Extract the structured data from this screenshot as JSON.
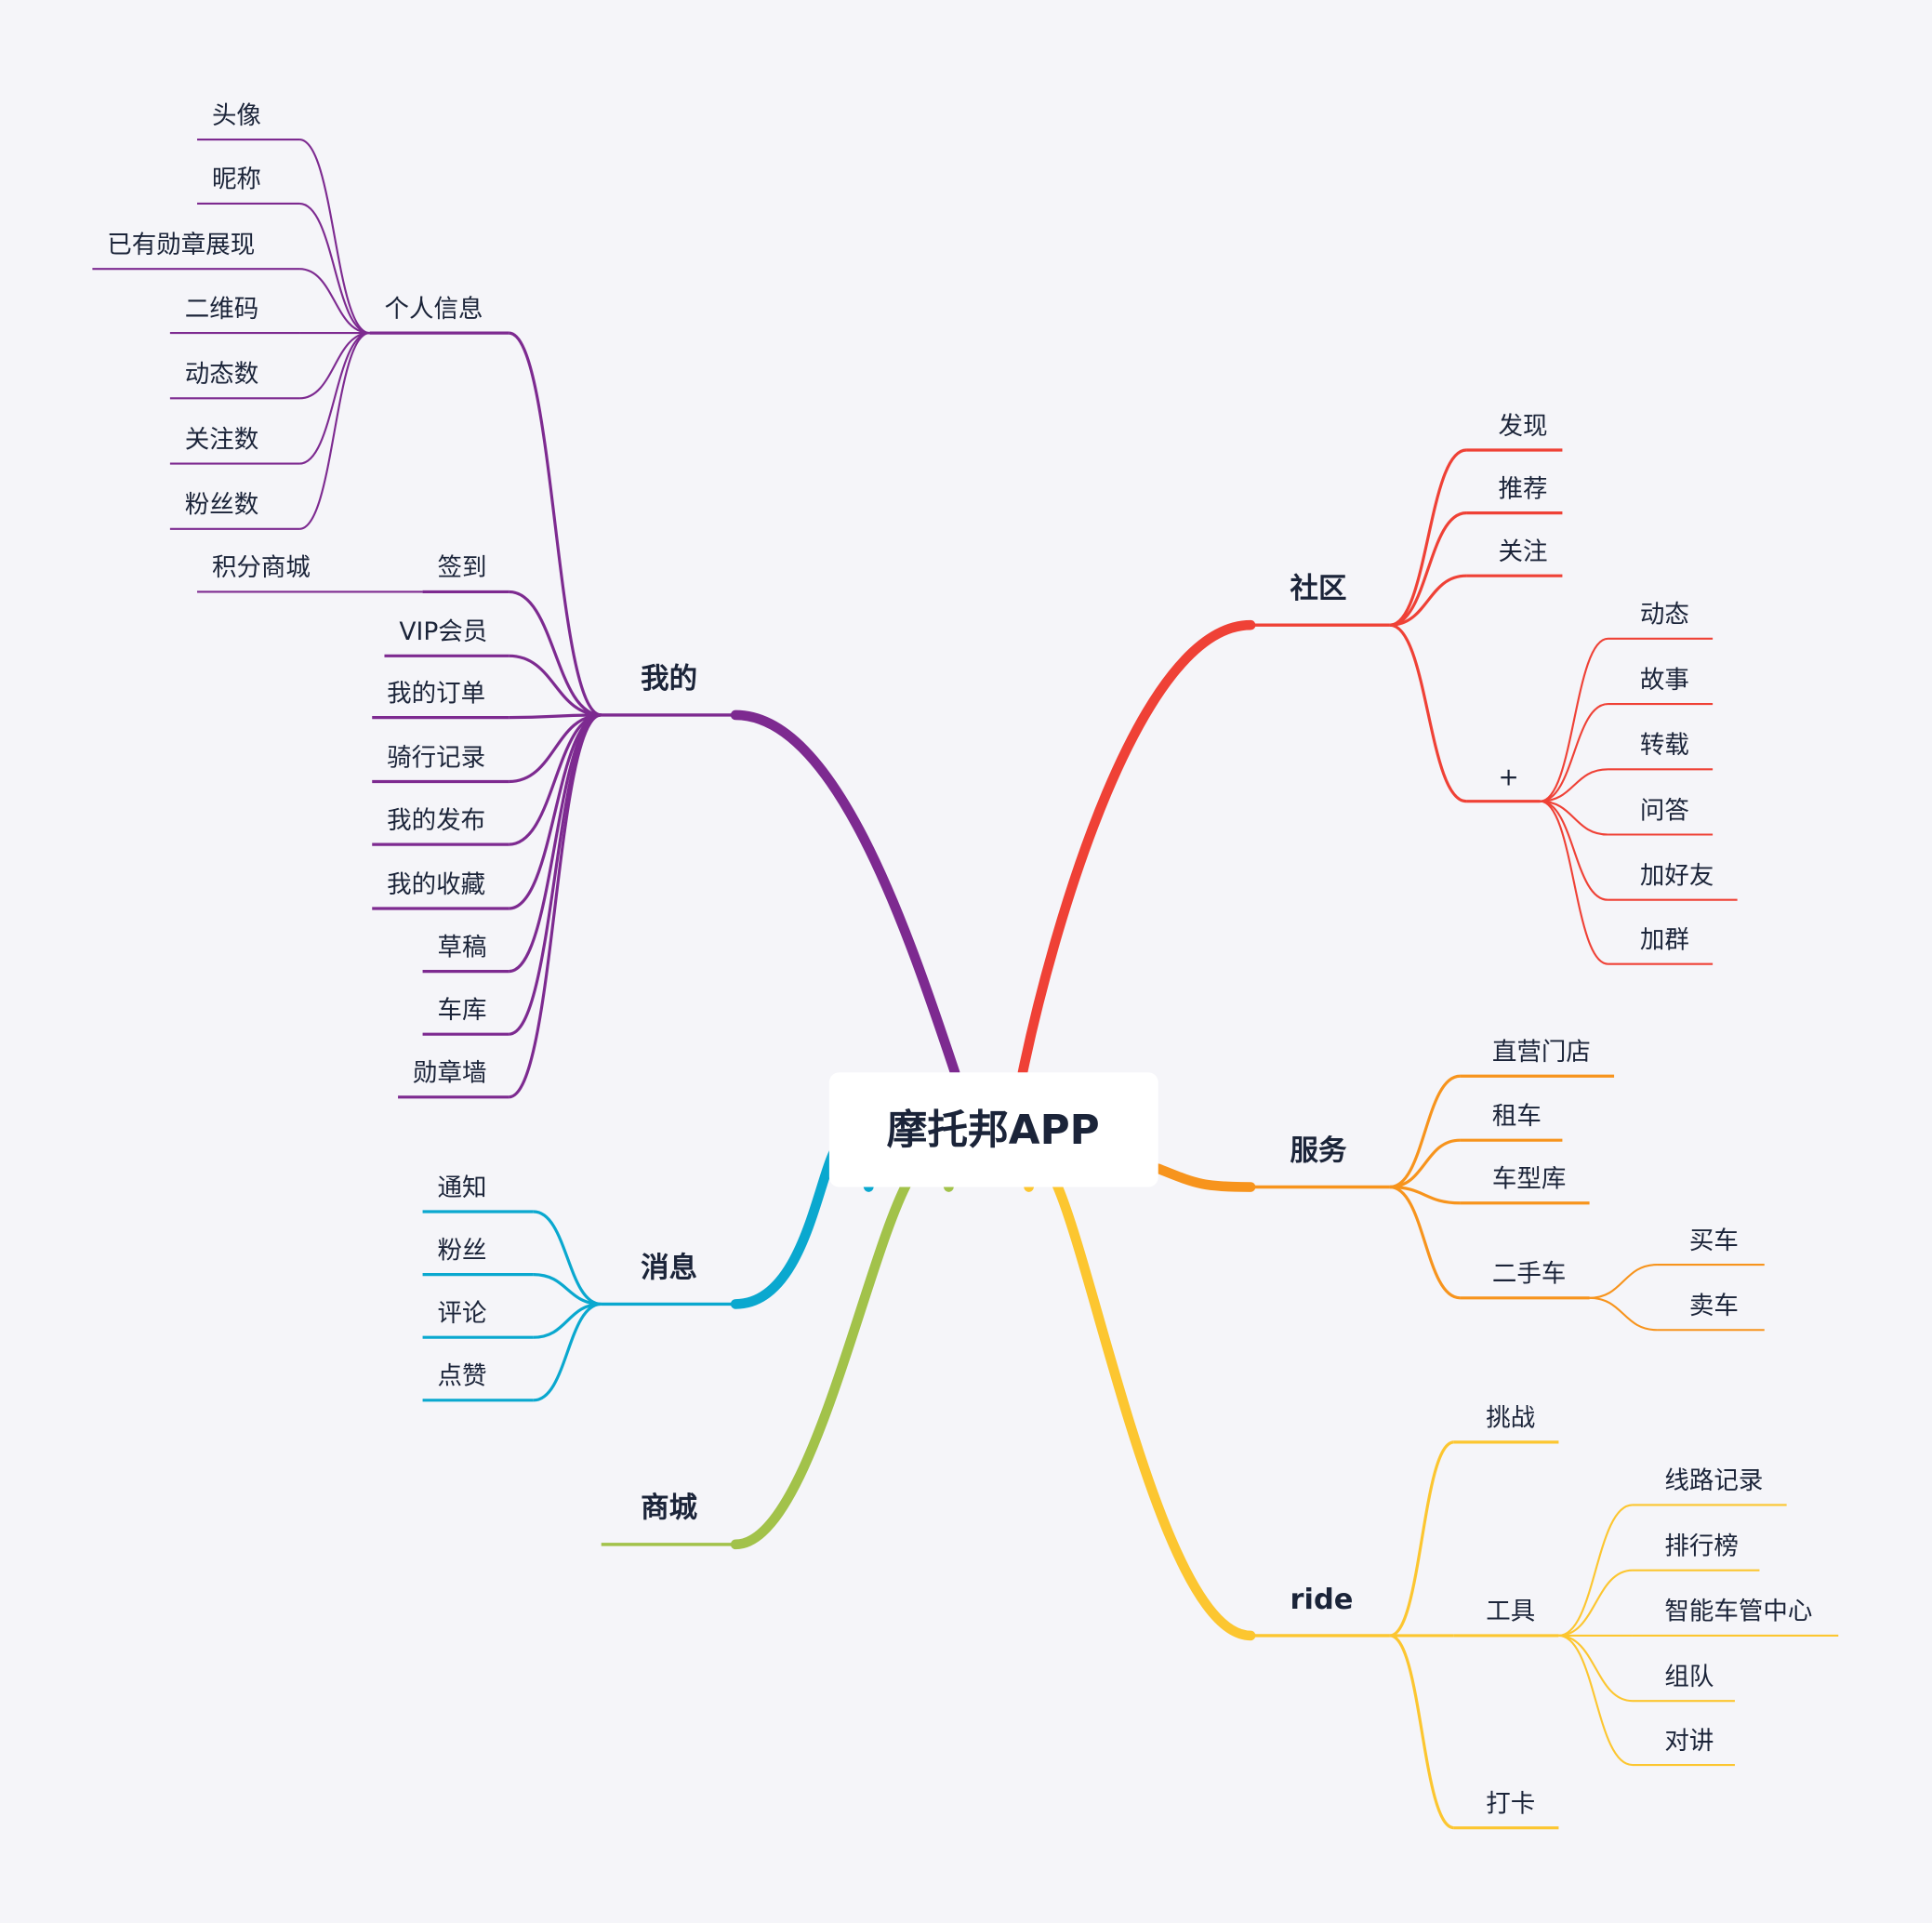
{
  "title": "摩托邦APP",
  "branches": [
    {
      "label": "我的",
      "color": "#7d2a90",
      "children": [
        {
          "label": "个人信息",
          "children": [
            {
              "label": "头像"
            },
            {
              "label": "昵称"
            },
            {
              "label": "已有勋章展现"
            },
            {
              "label": "二维码"
            },
            {
              "label": "动态数"
            },
            {
              "label": "关注数"
            },
            {
              "label": "粉丝数"
            }
          ]
        },
        {
          "label": "签到",
          "children": [
            {
              "label": "积分商城"
            }
          ]
        },
        {
          "label": "VIP会员"
        },
        {
          "label": "我的订单"
        },
        {
          "label": "骑行记录"
        },
        {
          "label": "我的发布"
        },
        {
          "label": "我的收藏"
        },
        {
          "label": "草稿"
        },
        {
          "label": "车库"
        },
        {
          "label": "勋章墙"
        }
      ]
    },
    {
      "label": "消息",
      "color": "#0aa8cf",
      "children": [
        {
          "label": "通知"
        },
        {
          "label": "粉丝"
        },
        {
          "label": "评论"
        },
        {
          "label": "点赞"
        }
      ]
    },
    {
      "label": "商城",
      "color": "#a2c24a",
      "children": []
    },
    {
      "label": "社区",
      "color": "#ef4136",
      "children": [
        {
          "label": "发现"
        },
        {
          "label": "推荐"
        },
        {
          "label": "关注"
        },
        {
          "label": "+",
          "children": [
            {
              "label": "动态"
            },
            {
              "label": "故事"
            },
            {
              "label": "转载"
            },
            {
              "label": "问答"
            },
            {
              "label": "加好友"
            },
            {
              "label": "加群"
            }
          ]
        }
      ]
    },
    {
      "label": "服务",
      "color": "#f7941d",
      "children": [
        {
          "label": "直营门店"
        },
        {
          "label": "租车"
        },
        {
          "label": "车型库"
        },
        {
          "label": "二手车",
          "children": [
            {
              "label": "买车"
            },
            {
              "label": "卖车"
            }
          ]
        }
      ]
    },
    {
      "label": "ride",
      "color": "#fcc630",
      "children": [
        {
          "label": "挑战"
        },
        {
          "label": "工具",
          "children": [
            {
              "label": "线路记录"
            },
            {
              "label": "排行榜"
            },
            {
              "label": "智能车管中心"
            },
            {
              "label": "组队"
            },
            {
              "label": "对讲"
            }
          ]
        },
        {
          "label": "打卡"
        }
      ]
    }
  ]
}
